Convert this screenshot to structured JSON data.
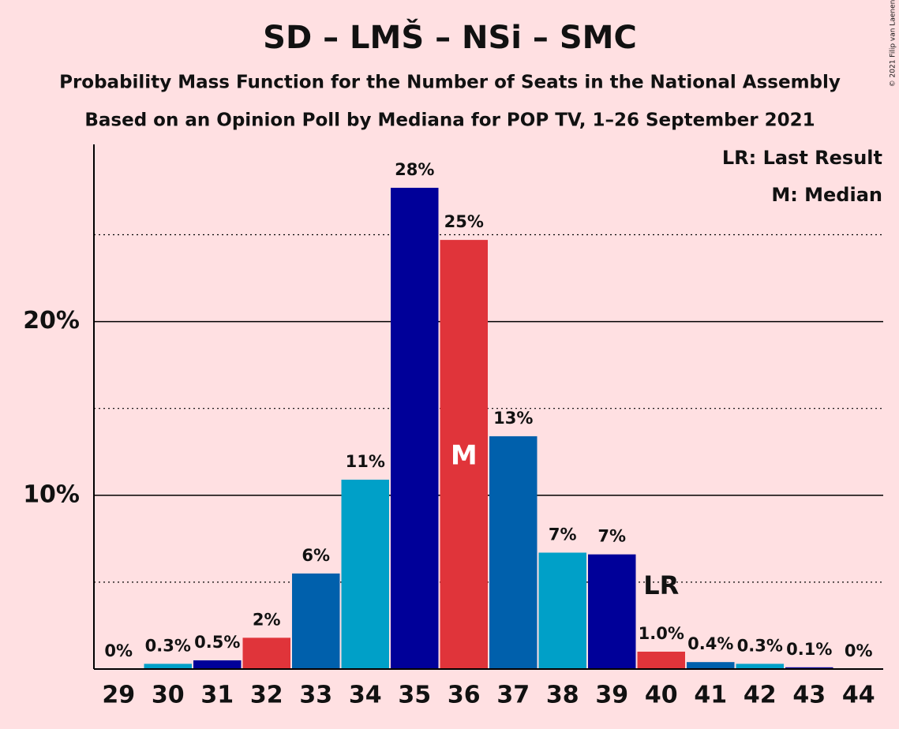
{
  "chart_data": {
    "type": "bar",
    "title": "SD – LMŠ – NSi – SMC",
    "subtitle": "Probability Mass Function for the Number of Seats in the National Assembly",
    "subtitle2": "Based on an Opinion Poll by Mediana for POP TV, 1–26 September 2021",
    "categories": [
      "29",
      "30",
      "31",
      "32",
      "33",
      "34",
      "35",
      "36",
      "37",
      "38",
      "39",
      "40",
      "41",
      "42",
      "43",
      "44"
    ],
    "values": [
      0,
      0.3,
      0.5,
      1.8,
      5.5,
      10.9,
      27.7,
      24.7,
      13.4,
      6.7,
      6.6,
      1.0,
      0.4,
      0.3,
      0.1,
      0
    ],
    "value_labels": [
      "0%",
      "0.3%",
      "0.5%",
      "2%",
      "6%",
      "11%",
      "28%",
      "25%",
      "13%",
      "7%",
      "7%",
      "1.0%",
      "0.4%",
      "0.3%",
      "0.1%",
      "0%"
    ],
    "colors": [
      "#0060ac",
      "#00a0c8",
      "#000099",
      "#e0343a",
      "#0060ac",
      "#00a0c8",
      "#000099",
      "#e0343a",
      "#0060ac",
      "#00a0c8",
      "#000099",
      "#e0343a",
      "#0060ac",
      "#00a0c8",
      "#000099",
      "#e0343a"
    ],
    "ylim": [
      0,
      30.2
    ],
    "yticks": [
      {
        "value": 10,
        "label": "10%"
      },
      {
        "value": 20,
        "label": "20%"
      }
    ],
    "minor_gridlines": [
      5,
      15,
      25
    ],
    "annotations": [
      {
        "text": "M",
        "category": 7
      },
      {
        "text": "LR",
        "category": 11
      }
    ],
    "legend": [
      "LR: Last Result",
      "M: Median"
    ],
    "copyright": "© 2021 Filip van Laenen"
  }
}
